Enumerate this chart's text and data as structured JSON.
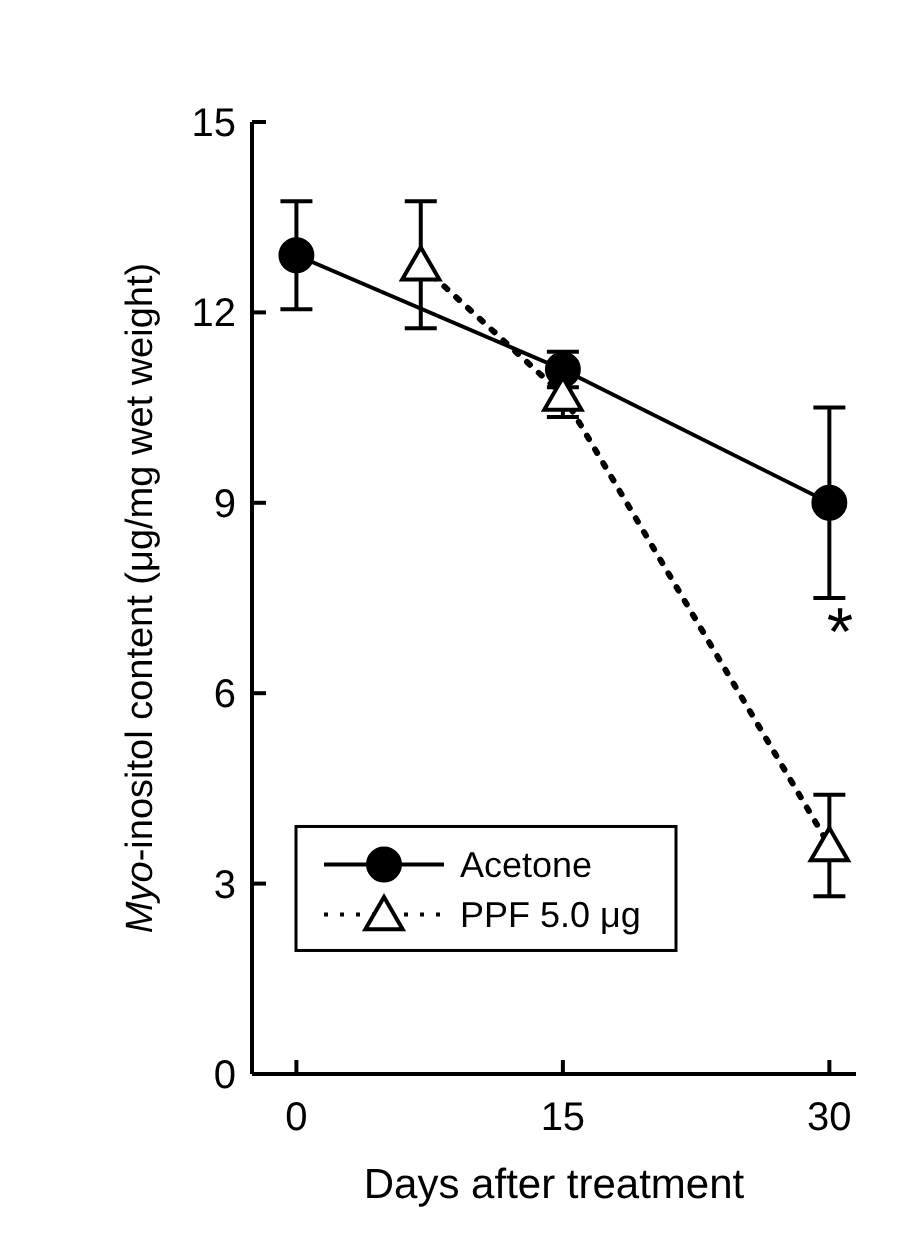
{
  "chart_data": {
    "type": "line",
    "xlabel": "Days after treatment",
    "ylabel": "Myo-inositol content (μg/mg wet weight)",
    "xlim": [
      -2.5,
      31.5
    ],
    "xticks": [
      0,
      15,
      30
    ],
    "ylim": [
      0,
      15
    ],
    "yticks": [
      0,
      3,
      6,
      9,
      12,
      15
    ],
    "series": [
      {
        "name": "Acetone",
        "color": "#000000",
        "x": [
          0,
          15,
          30
        ],
        "values": [
          12.9,
          11.1,
          9.0
        ],
        "errors": [
          0.85,
          0.28,
          1.5
        ],
        "marker": "circle",
        "line_style": "solid"
      },
      {
        "name": "PPF 5.0 μg",
        "color": "#000000",
        "x": [
          7,
          15,
          30
        ],
        "values": [
          12.75,
          10.7,
          3.6
        ],
        "errors": [
          1.0,
          0.35,
          0.8
        ],
        "marker": "triangle",
        "line_style": "dotted"
      }
    ],
    "annotations": [
      "*"
    ],
    "legend": "bottom left",
    "grid": false
  }
}
